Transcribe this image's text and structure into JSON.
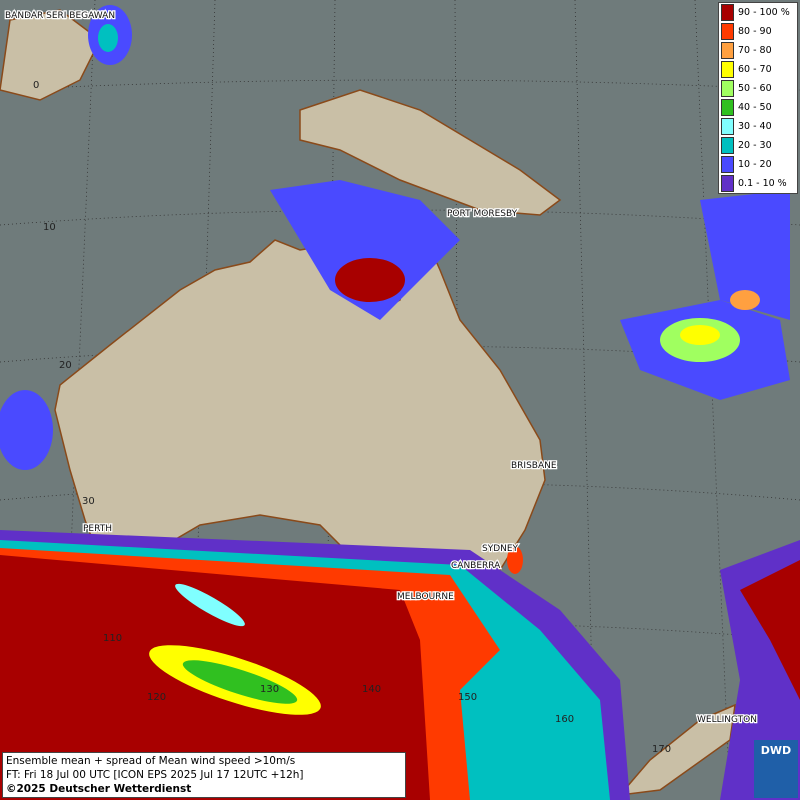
{
  "map": {
    "cities": [
      "BANDAR SERI BEGAWAN",
      "PORT MORESBY",
      "BRISBANE",
      "SYDNEY",
      "CANBERRA",
      "MELBOURNE",
      "PERTH",
      "WELLINGTON"
    ],
    "grid_labels": [
      "0",
      "10",
      "20",
      "30",
      "110",
      "120",
      "130",
      "140",
      "150",
      "160",
      "170"
    ],
    "legend": [
      {
        "label": "90 - 100 %",
        "color": "#a80000"
      },
      {
        "label": "80 - 90",
        "color": "#ff3a00"
      },
      {
        "label": "70 - 80",
        "color": "#ffa040"
      },
      {
        "label": "60 - 70",
        "color": "#ffff00"
      },
      {
        "label": "50 - 60",
        "color": "#a0ff60"
      },
      {
        "label": "40 - 50",
        "color": "#30c020"
      },
      {
        "label": "30 - 40",
        "color": "#80ffff"
      },
      {
        "label": "20 - 30",
        "color": "#00c0c0"
      },
      {
        "label": "10 - 20",
        "color": "#4a4aff"
      },
      {
        "label": "0.1 - 10 %",
        "color": "#6030c8"
      }
    ],
    "footer": [
      "Ensemble mean + spread of Mean wind speed >10m/s",
      "FT: Fri 18 Jul 00 UTC [ICON EPS 2025 Jul 17 12UTC +12h]",
      "©2025 Deutscher Wetterdienst"
    ],
    "logo": "DWD"
  }
}
